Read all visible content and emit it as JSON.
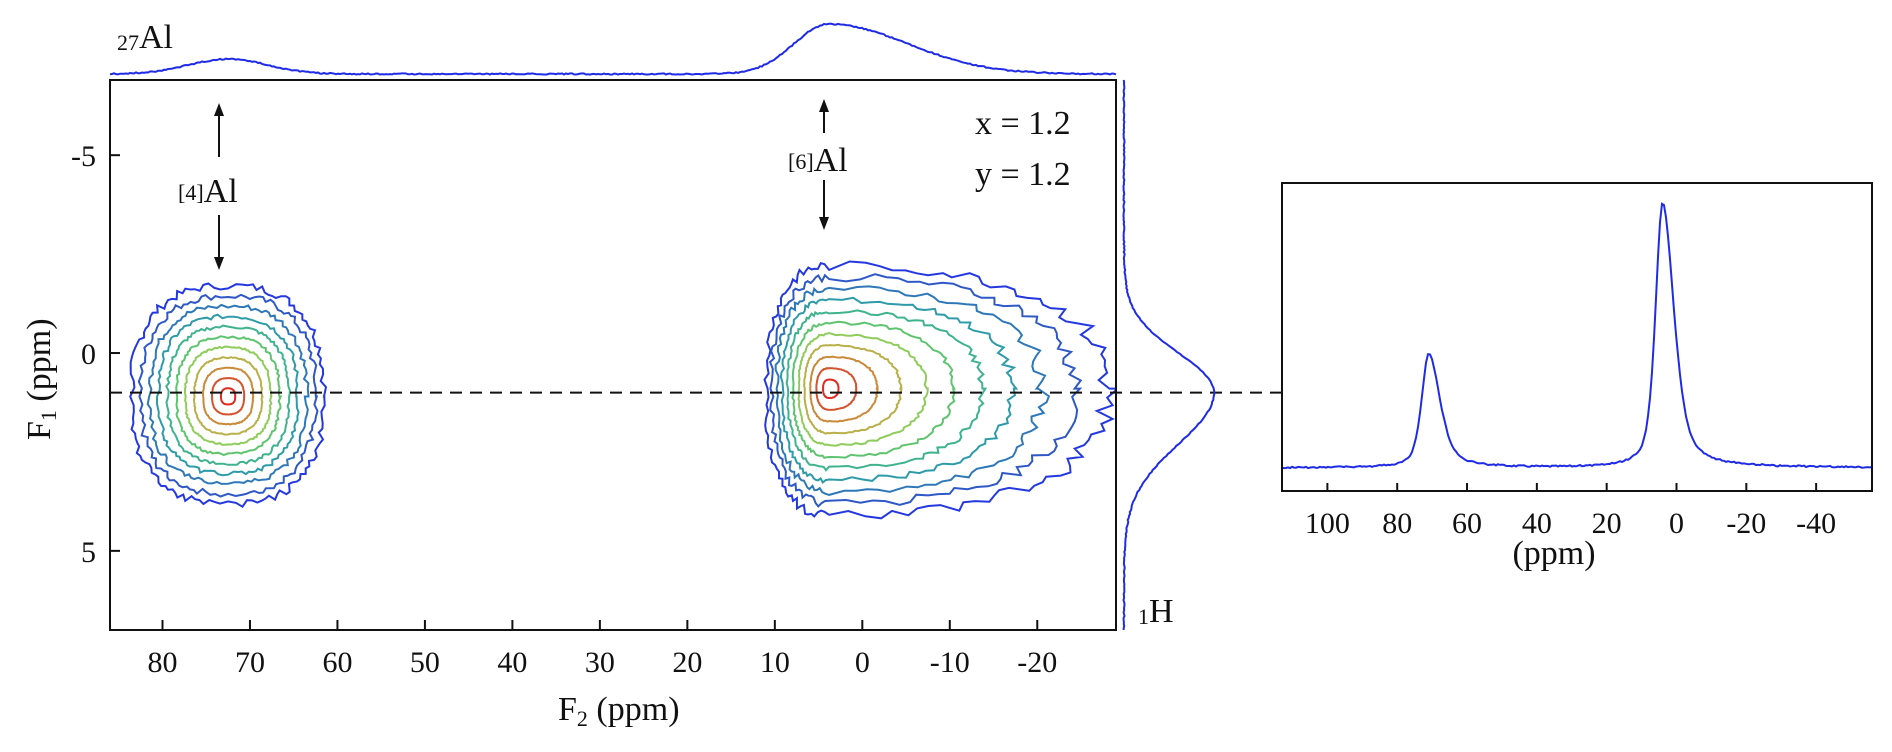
{
  "colors": {
    "spectrum_line": "#1f2be6",
    "axis": "#111111",
    "contour_levels": [
      "#2438e0",
      "#2e58c6",
      "#2f78b8",
      "#2e9ba8",
      "#3fb38e",
      "#5ec46f",
      "#8fcc5c",
      "#b9b04a",
      "#c98a3a",
      "#d4542e",
      "#e02a22"
    ]
  },
  "chart_data": [
    {
      "type": "heatmap",
      "subtype": "2D contour plot",
      "xlabel": "F2 (ppm)",
      "xlabel_main": "F",
      "xlabel_sub": "2",
      "xlabel_unit": " (ppm)",
      "ylabel": "F1 (ppm)",
      "ylabel_main": "F",
      "ylabel_sub": "1",
      "ylabel_unit": " (ppm)",
      "xlim": [
        86,
        -29
      ],
      "ylim": [
        -6.9,
        7
      ],
      "x_ticks": [
        80,
        70,
        60,
        50,
        40,
        30,
        20,
        10,
        0,
        -10,
        -20
      ],
      "x_tick_labels": [
        "80",
        "70",
        "60",
        "50",
        "40",
        "30",
        "20",
        "10",
        "0",
        "-10",
        "-20"
      ],
      "y_ticks": [
        -5,
        0,
        5
      ],
      "y_tick_labels": [
        "-5",
        "0",
        "5"
      ],
      "grid": false,
      "dashed_slice_F1": 1.0,
      "annotations": {
        "params_x": "x = 1.2",
        "params_y": "y = 1.2",
        "site4_prefix": "[4]",
        "site4_name": "Al",
        "site6_prefix": "[6]",
        "site6_name": "Al",
        "top_nucleus_sup": "27",
        "top_nucleus": "Al",
        "side_nucleus_sup": "1",
        "side_nucleus": "H"
      },
      "peaks": [
        {
          "name": "[4]Al",
          "F2": 72.5,
          "F1": 1.1,
          "F2_halfwidth_outer": 11,
          "F1_low": -1.7,
          "F1_high": 3.8
        },
        {
          "name": "[6]Al",
          "F2": 3.8,
          "F1": 0.9,
          "F2_extent": [
            11,
            -28
          ],
          "F1_low": -2.2,
          "F1_high": 4.1
        }
      ],
      "contour_levels": 11,
      "top_projection": {
        "nucleus": "27Al",
        "peaks": [
          {
            "F2": 72.5,
            "relative_height": 0.3
          },
          {
            "F2": 3.8,
            "relative_height": 1.0
          }
        ]
      },
      "side_projection": {
        "nucleus": "1H",
        "peaks": [
          {
            "F1": 1.0,
            "relative_height": 1.0
          }
        ]
      }
    },
    {
      "type": "line",
      "subtype": "1D slice spectrum",
      "xlabel": "(ppm)",
      "xlim": [
        113,
        -56
      ],
      "x_ticks": [
        100,
        80,
        60,
        40,
        20,
        0,
        -20,
        -40
      ],
      "x_tick_labels": [
        "100",
        "80",
        "60",
        "40",
        "20",
        "0",
        "-20",
        "-40"
      ],
      "grid": false,
      "peaks": [
        {
          "x": 71,
          "relative_height": 0.43,
          "fwhm": 6
        },
        {
          "x": 4,
          "relative_height": 1.0,
          "fwhm": 6
        }
      ],
      "baseline": 0.02
    }
  ]
}
